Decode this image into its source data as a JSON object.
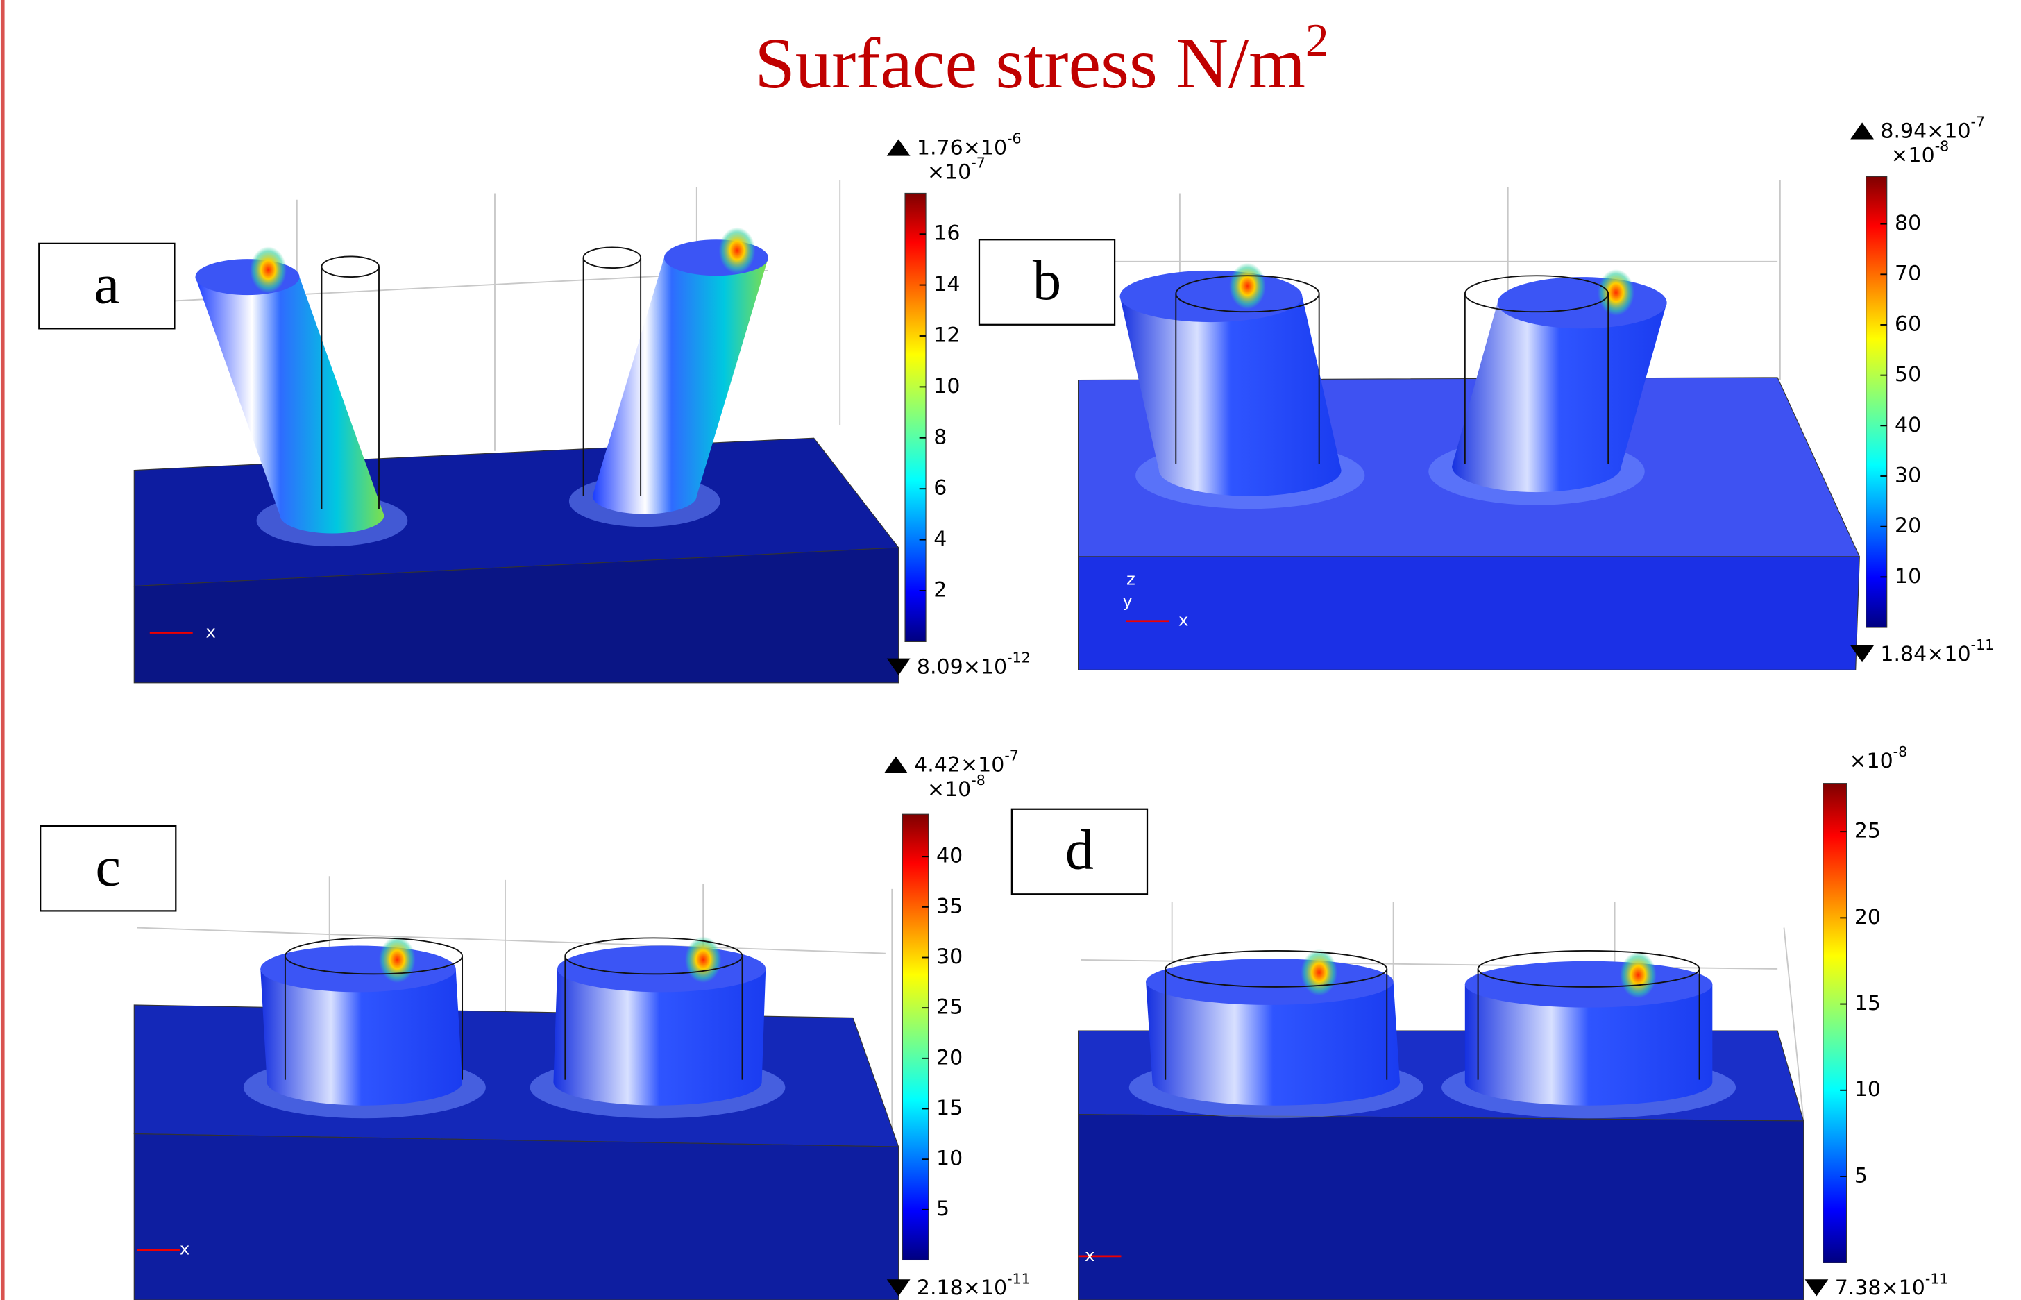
{
  "title": {
    "text": "Surface stress N/m",
    "superscript": "2"
  },
  "panels": [
    {
      "label": "a",
      "max": {
        "base": "1.76×10",
        "exponent": "-6"
      },
      "multiplier": {
        "base": "×10",
        "exponent": "-7"
      },
      "min": {
        "base": "8.09×10",
        "exponent": "-12"
      },
      "axis_labels": [
        "x"
      ],
      "colorbar": {
        "range": [
          0,
          17.6
        ],
        "ticks": [
          2,
          4,
          6,
          8,
          10,
          12,
          14,
          16
        ]
      }
    },
    {
      "label": "b",
      "max": {
        "base": "8.94×10",
        "exponent": "-7"
      },
      "multiplier": {
        "base": "×10",
        "exponent": "-8"
      },
      "min": {
        "base": "1.84×10",
        "exponent": "-11"
      },
      "axis_labels": [
        "z",
        "y",
        "x"
      ],
      "colorbar": {
        "range": [
          0,
          89.4
        ],
        "ticks": [
          10,
          20,
          30,
          40,
          50,
          60,
          70,
          80
        ]
      }
    },
    {
      "label": "c",
      "max": {
        "base": "4.42×10",
        "exponent": "-7"
      },
      "multiplier": {
        "base": "×10",
        "exponent": "-8"
      },
      "min": {
        "base": "2.18×10",
        "exponent": "-11"
      },
      "axis_labels": [
        "x"
      ],
      "colorbar": {
        "range": [
          0,
          44.2
        ],
        "ticks": [
          5,
          10,
          15,
          20,
          25,
          30,
          35,
          40
        ]
      }
    },
    {
      "label": "d",
      "multiplier": {
        "base": "×10",
        "exponent": "-8"
      },
      "min": {
        "base": "7.38×10",
        "exponent": "-11"
      },
      "axis_labels": [
        "x"
      ],
      "colorbar": {
        "range": [
          0,
          27.8
        ],
        "ticks": [
          5,
          10,
          15,
          20,
          25
        ]
      }
    }
  ]
}
